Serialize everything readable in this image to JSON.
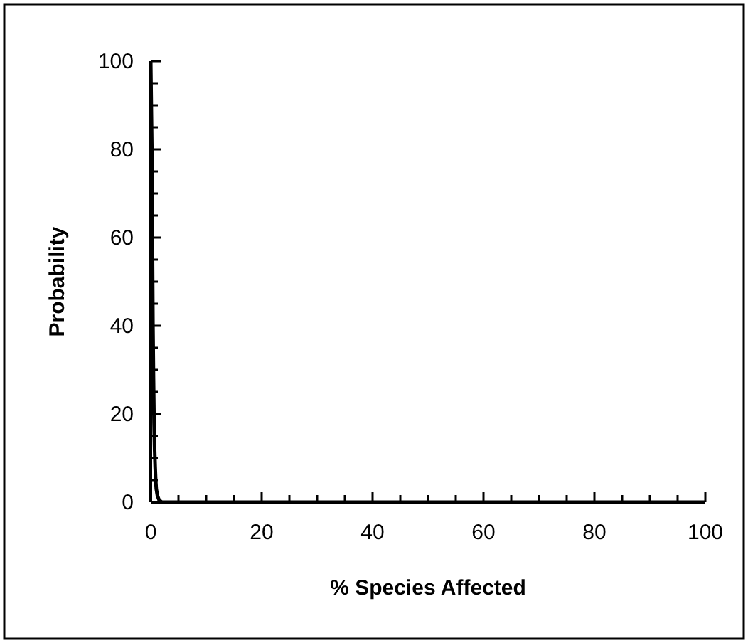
{
  "chart_data": {
    "type": "line",
    "xlabel": "% Species Affected",
    "ylabel": "Probability",
    "x": [
      0,
      0.2,
      0.3,
      0.4,
      0.5,
      0.6,
      0.7,
      0.8,
      0.9,
      1,
      1.2,
      1.5,
      2,
      5,
      100
    ],
    "series": [
      {
        "color": "#000000",
        "values": [
          100,
          80,
          60,
          40,
          28,
          18,
          12,
          8,
          5,
          3,
          1.5,
          0.5,
          0,
          0,
          0
        ]
      }
    ],
    "xlim": [
      0,
      100
    ],
    "ylim": [
      0,
      100
    ],
    "xticks": [
      0,
      {
        "value": 5,
        "label": null
      },
      20,
      {
        "value": 10,
        "label": null
      },
      {
        "value": 15,
        "label": null
      },
      {
        "value": 25,
        "label": null
      },
      {
        "value": 30,
        "label": null
      },
      {
        "value": 35,
        "label": null
      },
      40,
      {
        "value": 45,
        "label": null
      },
      {
        "value": 50,
        "label": null
      },
      {
        "value": 55,
        "label": null
      },
      60,
      {
        "value": 65,
        "label": null
      },
      {
        "value": 70,
        "label": null
      },
      {
        "value": 75,
        "label": null
      },
      80,
      {
        "value": 85,
        "label": null
      },
      {
        "value": 90,
        "label": null
      },
      {
        "value": 95,
        "label": null
      },
      100
    ],
    "yticks": [
      0,
      {
        "value": 5,
        "label": null
      },
      {
        "value": 10,
        "label": null
      },
      {
        "value": 15,
        "label": null
      },
      20,
      {
        "value": 25,
        "label": null
      },
      {
        "value": 30,
        "label": null
      },
      {
        "value": 35,
        "label": null
      },
      40,
      {
        "value": 45,
        "label": null
      },
      {
        "value": 50,
        "label": null
      },
      {
        "value": 55,
        "label": null
      },
      60,
      {
        "value": 65,
        "label": null
      },
      {
        "value": 70,
        "label": null
      },
      {
        "value": 75,
        "label": null
      },
      80,
      {
        "value": 85,
        "label": null
      },
      {
        "value": 90,
        "label": null
      },
      {
        "value": 95,
        "label": null
      },
      100
    ],
    "grid": false,
    "marker": "none",
    "line_style": "solid"
  }
}
